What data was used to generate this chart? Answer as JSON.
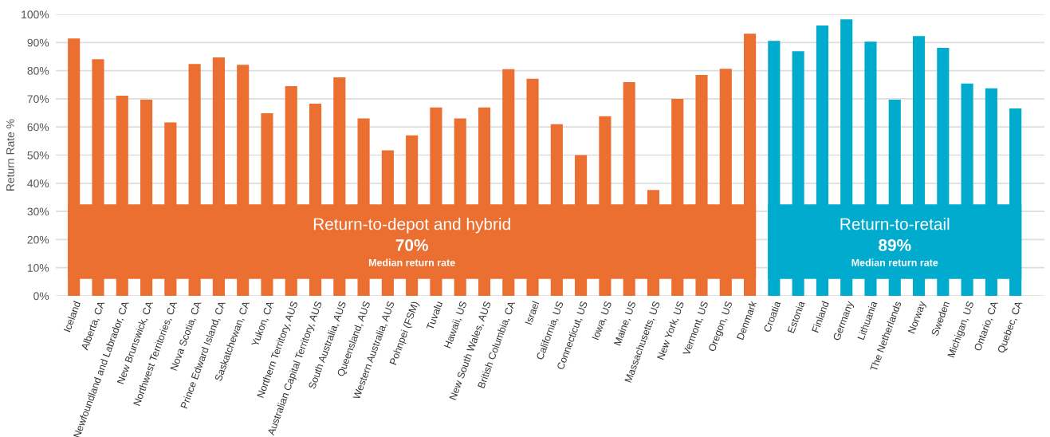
{
  "chart_data": {
    "type": "bar",
    "ylabel": "Return Rate %",
    "categories": [
      "Iceland",
      "Alberta, CA",
      "Newfoundland and Labrador, CA",
      "New Brunswick, CA",
      "Northwest Territories, CA",
      "Nova Scotia, CA",
      "Prince Edward Island, CA",
      "Saskatchewan, CA",
      "Yukon, CA",
      "Northern Territory, AUS",
      "Australian Capital Territory, AUS",
      "South Australia, AUS",
      "Queensland, AUS",
      "Western Australia, AUS",
      "Pohnpei (FSM)",
      "Tuvalu",
      "Hawaii, US",
      "New South Wales, AUS",
      "British Columbia, CA",
      "Israel",
      "California, US",
      "Connecticut, US",
      "Iowa, US",
      "Maine, US",
      "Massachusetts, US",
      "New York, US",
      "Vermont, US",
      "Oregon, US",
      "Denmark",
      "Croatia",
      "Estonia",
      "Finland",
      "Germany",
      "Lithuania",
      "The Netherlands",
      "Norway",
      "Sweden",
      "Michigan, US",
      "Ontario, CA",
      "Quebec, CA"
    ],
    "values": [
      91.4,
      84.1,
      71.1,
      69.7,
      61.6,
      82.4,
      84.7,
      82.1,
      64.9,
      74.5,
      68.3,
      77.6,
      63.0,
      51.7,
      57.0,
      66.9,
      63.0,
      66.9,
      80.5,
      77.1,
      61.0,
      50.0,
      63.8,
      75.9,
      37.6,
      70.0,
      78.5,
      80.7,
      93.1,
      90.6,
      86.9,
      96.0,
      98.2,
      90.3,
      69.7,
      92.3,
      88.1,
      75.4,
      73.7,
      66.6
    ],
    "colors": [
      "#ec6f32",
      "#ec6f32",
      "#ec6f32",
      "#ec6f32",
      "#ec6f32",
      "#ec6f32",
      "#ec6f32",
      "#ec6f32",
      "#ec6f32",
      "#ec6f32",
      "#ec6f32",
      "#ec6f32",
      "#ec6f32",
      "#ec6f32",
      "#ec6f32",
      "#ec6f32",
      "#ec6f32",
      "#ec6f32",
      "#ec6f32",
      "#ec6f32",
      "#ec6f32",
      "#ec6f32",
      "#ec6f32",
      "#ec6f32",
      "#ec6f32",
      "#ec6f32",
      "#ec6f32",
      "#ec6f32",
      "#ec6f32",
      "#00abce",
      "#00abce",
      "#00abce",
      "#00abce",
      "#00abce",
      "#00abce",
      "#00abce",
      "#00abce",
      "#00abce",
      "#00abce",
      "#00abce"
    ],
    "ylim": [
      0,
      100
    ],
    "yticks": [
      {
        "value": 0,
        "label": "0%"
      },
      {
        "value": 10,
        "label": "10%"
      },
      {
        "value": 20,
        "label": "20%"
      },
      {
        "value": 30,
        "label": "30%"
      },
      {
        "value": 40,
        "label": "40%"
      },
      {
        "value": 50,
        "label": "50%"
      },
      {
        "value": 60,
        "label": "60%"
      },
      {
        "value": 70,
        "label": "70%"
      },
      {
        "value": 80,
        "label": "80%"
      },
      {
        "value": 90,
        "label": "90%"
      },
      {
        "value": 100,
        "label": "100%"
      }
    ],
    "grid": "y",
    "annotations": [
      "Return-to-depot and hybrid",
      "70%",
      "Median return rate",
      "Return-to-retail",
      "89%",
      "Median return rate"
    ]
  }
}
